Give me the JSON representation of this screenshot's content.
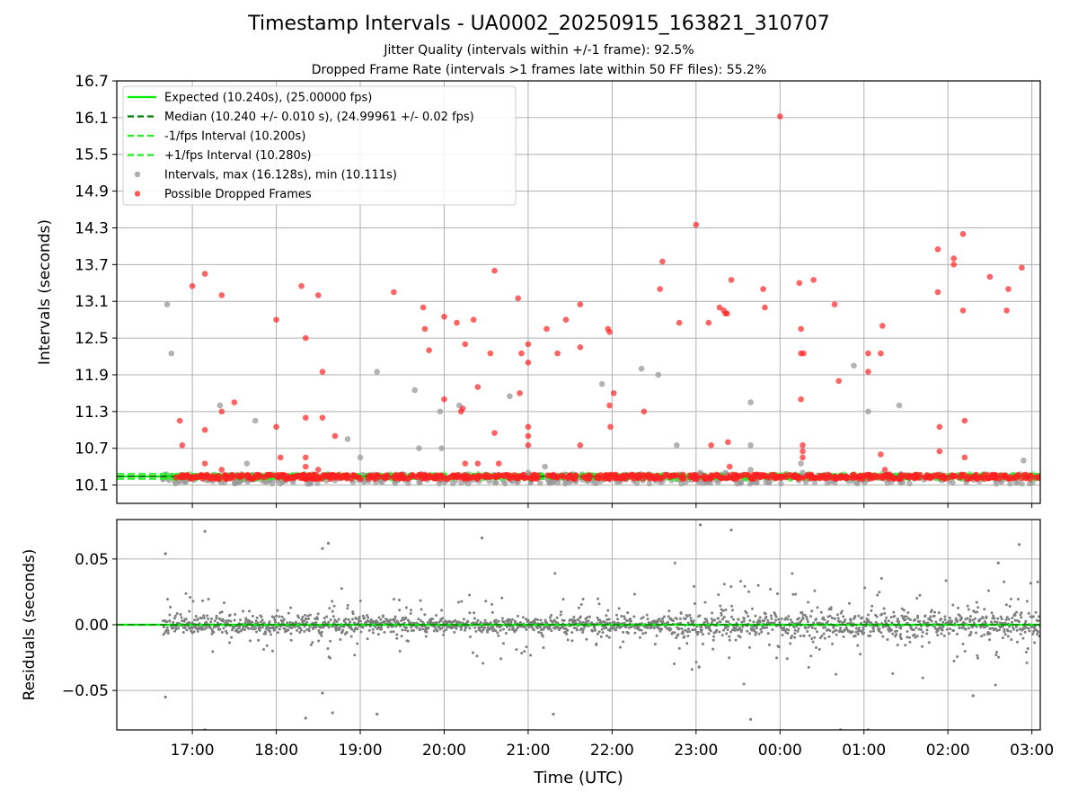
{
  "chart_data": [
    {
      "type": "scatter",
      "title": "Timestamp Intervals - UA0002_20250915_163821_310707",
      "subtitle_lines": [
        "Jitter Quality (intervals within +/-1 frame): 92.5%",
        "Dropped Frame Rate (intervals >1 frames late within 50 FF files): 55.2%"
      ],
      "ylabel": "Intervals (seconds)",
      "xlim_hours": [
        16.1,
        27.1
      ],
      "ylim": [
        9.8,
        16.7
      ],
      "yticks": [
        10.1,
        10.7,
        11.3,
        11.9,
        12.5,
        13.1,
        13.7,
        14.3,
        14.9,
        15.5,
        16.1,
        16.7
      ],
      "ytick_labels": [
        "10.1",
        "10.7",
        "11.3",
        "11.9",
        "12.5",
        "13.1",
        "13.7",
        "14.3",
        "14.9",
        "15.5",
        "16.1",
        "16.7"
      ],
      "grid": true,
      "legend_position": "top-left",
      "legend": [
        {
          "label": "Expected (10.240s), (25.00000 fps)",
          "style": "solid",
          "color": "#00ee00"
        },
        {
          "label": "Median (10.240 +/- 0.010 s), (24.99961 +/- 0.02 fps)",
          "style": "dashed",
          "color": "#007f00"
        },
        {
          "label": "-1/fps Interval (10.200s)",
          "style": "dashed",
          "color": "#22ee22"
        },
        {
          "label": "+1/fps Interval (10.280s)",
          "style": "dashed",
          "color": "#22ee22"
        },
        {
          "label": "Intervals, max (16.128s), min (10.111s)",
          "style": "marker",
          "color": "#999999"
        },
        {
          "label": "Possible Dropped Frames",
          "style": "marker",
          "color": "#ff3333"
        }
      ],
      "reference_lines": {
        "expected": 10.24,
        "median": 10.24,
        "minus_one_fps": 10.2,
        "plus_one_fps": 10.28
      },
      "baseline_x_range_hours": [
        16.65,
        27.1
      ],
      "series": [
        {
          "name": "Possible Dropped Frames",
          "color": "#ff2222",
          "points": [
            [
              16.85,
              11.15
            ],
            [
              16.88,
              10.75
            ],
            [
              17.0,
              13.35
            ],
            [
              17.15,
              13.55
            ],
            [
              17.15,
              11.0
            ],
            [
              17.15,
              10.45
            ],
            [
              17.35,
              13.2
            ],
            [
              17.35,
              11.3
            ],
            [
              17.35,
              10.35
            ],
            [
              17.5,
              11.45
            ],
            [
              18.0,
              12.8
            ],
            [
              18.0,
              11.05
            ],
            [
              18.05,
              10.55
            ],
            [
              18.3,
              13.35
            ],
            [
              18.35,
              12.5
            ],
            [
              18.35,
              11.2
            ],
            [
              18.35,
              10.55
            ],
            [
              18.35,
              10.4
            ],
            [
              18.5,
              13.2
            ],
            [
              18.5,
              10.35
            ],
            [
              18.55,
              11.95
            ],
            [
              18.55,
              11.2
            ],
            [
              18.7,
              10.9
            ],
            [
              19.4,
              13.25
            ],
            [
              19.75,
              13.0
            ],
            [
              19.77,
              12.65
            ],
            [
              19.82,
              12.3
            ],
            [
              20.0,
              12.85
            ],
            [
              20.0,
              11.5
            ],
            [
              20.15,
              12.75
            ],
            [
              20.2,
              11.3
            ],
            [
              20.22,
              11.35
            ],
            [
              20.25,
              12.4
            ],
            [
              20.35,
              12.8
            ],
            [
              20.4,
              11.7
            ],
            [
              20.25,
              10.45
            ],
            [
              20.4,
              10.45
            ],
            [
              20.55,
              12.25
            ],
            [
              20.6,
              13.6
            ],
            [
              20.6,
              10.95
            ],
            [
              20.65,
              10.45
            ],
            [
              20.88,
              13.15
            ],
            [
              20.9,
              11.6
            ],
            [
              20.92,
              12.25
            ],
            [
              21.0,
              12.4
            ],
            [
              21.0,
              12.1
            ],
            [
              21.0,
              11.05
            ],
            [
              21.0,
              10.9
            ],
            [
              21.0,
              10.75
            ],
            [
              21.1,
              10.2
            ],
            [
              21.22,
              12.65
            ],
            [
              21.35,
              12.25
            ],
            [
              21.45,
              12.8
            ],
            [
              21.62,
              13.05
            ],
            [
              21.62,
              12.35
            ],
            [
              21.62,
              10.75
            ],
            [
              21.95,
              12.65
            ],
            [
              21.97,
              12.6
            ],
            [
              21.97,
              11.4
            ],
            [
              21.98,
              11.05
            ],
            [
              22.02,
              11.6
            ],
            [
              22.38,
              11.3
            ],
            [
              22.57,
              13.3
            ],
            [
              22.6,
              13.75
            ],
            [
              22.8,
              12.75
            ],
            [
              23.0,
              14.35
            ],
            [
              23.15,
              12.75
            ],
            [
              23.18,
              10.75
            ],
            [
              23.28,
              13.0
            ],
            [
              23.33,
              12.95
            ],
            [
              23.35,
              12.9
            ],
            [
              23.37,
              12.9
            ],
            [
              23.38,
              10.8
            ],
            [
              23.42,
              13.45
            ],
            [
              23.4,
              10.4
            ],
            [
              23.8,
              13.3
            ],
            [
              23.82,
              13.0
            ],
            [
              24.0,
              16.12
            ],
            [
              24.23,
              13.4
            ],
            [
              24.25,
              12.65
            ],
            [
              24.25,
              12.25
            ],
            [
              24.28,
              12.25
            ],
            [
              24.25,
              11.5
            ],
            [
              24.27,
              10.75
            ],
            [
              24.27,
              10.65
            ],
            [
              24.27,
              10.55
            ],
            [
              24.4,
              13.45
            ],
            [
              24.65,
              13.05
            ],
            [
              24.7,
              11.8
            ],
            [
              25.05,
              12.25
            ],
            [
              25.05,
              11.95
            ],
            [
              25.2,
              12.25
            ],
            [
              25.22,
              12.7
            ],
            [
              25.2,
              10.6
            ],
            [
              25.25,
              10.35
            ],
            [
              25.88,
              13.95
            ],
            [
              25.88,
              13.25
            ],
            [
              25.9,
              11.05
            ],
            [
              25.9,
              10.65
            ],
            [
              26.07,
              13.8
            ],
            [
              26.07,
              13.7
            ],
            [
              26.18,
              14.2
            ],
            [
              26.18,
              12.95
            ],
            [
              26.2,
              11.15
            ],
            [
              26.2,
              10.55
            ],
            [
              26.5,
              13.5
            ],
            [
              26.7,
              12.95
            ],
            [
              26.72,
              13.3
            ],
            [
              26.88,
              13.65
            ]
          ]
        },
        {
          "name": "Intervals, max (16.128s), min (10.111s)",
          "color": "#999999",
          "points": [
            [
              16.7,
              13.05
            ],
            [
              16.75,
              12.25
            ],
            [
              17.33,
              11.4
            ],
            [
              17.65,
              10.45
            ],
            [
              17.75,
              11.15
            ],
            [
              18.85,
              10.85
            ],
            [
              19.0,
              10.55
            ],
            [
              19.2,
              11.95
            ],
            [
              19.65,
              11.65
            ],
            [
              19.7,
              10.7
            ],
            [
              19.95,
              11.3
            ],
            [
              19.97,
              10.7
            ],
            [
              20.18,
              11.4
            ],
            [
              20.78,
              11.55
            ],
            [
              21.0,
              10.3
            ],
            [
              21.2,
              10.4
            ],
            [
              21.88,
              11.75
            ],
            [
              22.35,
              12.0
            ],
            [
              22.55,
              11.9
            ],
            [
              22.77,
              10.75
            ],
            [
              23.05,
              10.3
            ],
            [
              23.35,
              10.3
            ],
            [
              23.65,
              11.45
            ],
            [
              23.65,
              10.75
            ],
            [
              23.65,
              10.35
            ],
            [
              24.25,
              10.45
            ],
            [
              24.27,
              10.3
            ],
            [
              24.88,
              12.05
            ],
            [
              25.05,
              11.3
            ],
            [
              25.42,
              11.4
            ],
            [
              26.9,
              10.5
            ]
          ]
        }
      ]
    },
    {
      "type": "scatter",
      "xlabel": "Time (UTC)",
      "ylabel": "Residuals (seconds)",
      "xlim_hours": [
        16.1,
        27.1
      ],
      "ylim": [
        -0.08,
        0.08
      ],
      "yticks": [
        -0.05,
        0.0,
        0.05
      ],
      "ytick_labels": [
        "−0.05",
        "0.00",
        "0.05"
      ],
      "xticks_hours": [
        17,
        18,
        19,
        20,
        21,
        22,
        23,
        24,
        25,
        26,
        27
      ],
      "xtick_labels": [
        "17:00",
        "18:00",
        "19:00",
        "20:00",
        "21:00",
        "22:00",
        "23:00",
        "00:00",
        "01:00",
        "02:00",
        "03:00"
      ],
      "grid": true,
      "zero_line_color": "#00ee00",
      "residual_color": "#7f7f7f",
      "residual_x_range_hours": [
        16.65,
        27.1
      ],
      "residual_point_count": 2000,
      "residual_core_spread": 0.008,
      "residual_wide_spread": 0.03,
      "outliers": [
        [
          16.68,
          0.054
        ],
        [
          16.68,
          -0.055
        ],
        [
          17.15,
          0.071
        ],
        [
          17.15,
          -0.08
        ],
        [
          18.35,
          -0.071
        ],
        [
          18.55,
          -0.052
        ],
        [
          18.62,
          0.062
        ],
        [
          18.67,
          -0.067
        ],
        [
          18.55,
          0.058
        ],
        [
          19.2,
          -0.068
        ],
        [
          20.45,
          0.066
        ],
        [
          21.3,
          -0.068
        ],
        [
          23.05,
          0.076
        ],
        [
          23.42,
          0.072
        ],
        [
          23.65,
          -0.072
        ],
        [
          24.72,
          -0.08
        ],
        [
          25.05,
          -0.08
        ],
        [
          26.3,
          -0.054
        ],
        [
          26.6,
          0.047
        ],
        [
          26.85,
          0.061
        ]
      ]
    }
  ]
}
